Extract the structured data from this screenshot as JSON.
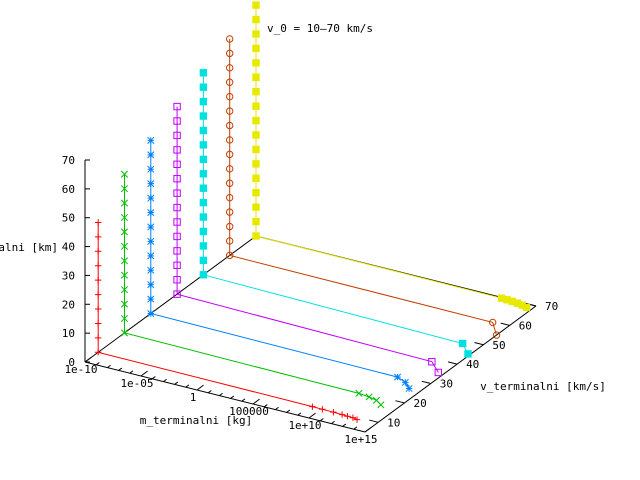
{
  "chart_data": {
    "type": "scatter",
    "title": "v_0 = 10–70 km/s",
    "xlabel": "m_terminalni [kg]",
    "ylabel": "v_terminalni [km/s]",
    "zlabel": "h_terminalni [km]",
    "x_ticks": [
      "1e-10",
      "1e-05",
      "1",
      "100000",
      "1e+10",
      "1e+15"
    ],
    "y_ticks": [
      "10",
      "20",
      "30",
      "40",
      "50",
      "60",
      "70"
    ],
    "z_ticks": [
      "0",
      "10",
      "20",
      "30",
      "40",
      "50",
      "60",
      "70"
    ],
    "xlim_log10": [
      -10,
      15
    ],
    "ylim": [
      5,
      70
    ],
    "zlim": [
      0,
      70
    ],
    "grid": false,
    "legend": "none",
    "series": [
      {
        "color": "#ff0000",
        "marker": "plus",
        "v0": 10,
        "points": [
          [
            13.35,
            9.0,
            0.0
          ],
          [
            12.9,
            9.35,
            0.0
          ],
          [
            12.4,
            9.4,
            0.0
          ],
          [
            11.9,
            9.5,
            0.0
          ],
          [
            11.1,
            9.6,
            0.0
          ],
          [
            10.1,
            9.65,
            0.0
          ],
          [
            9.2,
            9.7,
            0.0
          ],
          [
            -10,
            10,
            0
          ],
          [
            -10,
            10,
            5
          ],
          [
            -10,
            10,
            10
          ],
          [
            -10,
            10,
            15
          ],
          [
            -10,
            10,
            20
          ],
          [
            -10,
            10,
            25
          ],
          [
            -10,
            10,
            30
          ],
          [
            -10,
            10,
            35
          ],
          [
            -10,
            10,
            40
          ],
          [
            -10,
            10,
            45
          ]
        ]
      },
      {
        "color": "#00c000",
        "marker": "cross",
        "v0": 20,
        "points": [
          [
            13.6,
            17.0,
            0.0
          ],
          [
            12.9,
            18.3,
            0.0
          ],
          [
            12.1,
            18.9,
            0.0
          ],
          [
            11.1,
            19.3,
            0.0
          ],
          [
            -10,
            20,
            0
          ],
          [
            -10,
            20,
            5
          ],
          [
            -10,
            20,
            10
          ],
          [
            -10,
            20,
            15
          ],
          [
            -10,
            20,
            20
          ],
          [
            -10,
            20,
            25
          ],
          [
            -10,
            20,
            30
          ],
          [
            -10,
            20,
            35
          ],
          [
            -10,
            20,
            40
          ],
          [
            -10,
            20,
            45
          ],
          [
            -10,
            20,
            50
          ],
          [
            -10,
            20,
            55
          ]
        ]
      },
      {
        "color": "#0080ff",
        "marker": "star",
        "v0": 30,
        "points": [
          [
            14.0,
            26.0,
            0.0
          ],
          [
            13.2,
            28.0,
            0.0
          ],
          [
            12.2,
            29.3,
            0.0
          ],
          [
            -10,
            30,
            0
          ],
          [
            -10,
            30,
            5
          ],
          [
            -10,
            30,
            10
          ],
          [
            -10,
            30,
            15
          ],
          [
            -10,
            30,
            20
          ],
          [
            -10,
            30,
            25
          ],
          [
            -10,
            30,
            30
          ],
          [
            -10,
            30,
            35
          ],
          [
            -10,
            30,
            40
          ],
          [
            -10,
            30,
            45
          ],
          [
            -10,
            30,
            50
          ],
          [
            -10,
            30,
            55
          ],
          [
            -10,
            30,
            60
          ]
        ]
      },
      {
        "color": "#c000ff",
        "marker": "square-open",
        "v0": 40,
        "points": [
          [
            14.5,
            35.0,
            0.0
          ],
          [
            13.1,
            38.5,
            0.0
          ],
          [
            -10,
            40,
            0
          ],
          [
            -10,
            40,
            5
          ],
          [
            -10,
            40,
            10
          ],
          [
            -10,
            40,
            15
          ],
          [
            -10,
            40,
            20
          ],
          [
            -10,
            40,
            25
          ],
          [
            -10,
            40,
            30
          ],
          [
            -10,
            40,
            35
          ],
          [
            -10,
            40,
            40
          ],
          [
            -10,
            40,
            45
          ],
          [
            -10,
            40,
            50
          ],
          [
            -10,
            40,
            55
          ],
          [
            -10,
            40,
            60
          ],
          [
            -10,
            40,
            65
          ]
        ]
      },
      {
        "color": "#00e0e0",
        "marker": "square-filled",
        "v0": 50,
        "points": [
          [
            14.8,
            45.0,
            0.0
          ],
          [
            13.5,
            48.5,
            0.0
          ],
          [
            -10,
            50,
            0
          ],
          [
            -10,
            50,
            5
          ],
          [
            -10,
            50,
            10
          ],
          [
            -10,
            50,
            15
          ],
          [
            -10,
            50,
            20
          ],
          [
            -10,
            50,
            25
          ],
          [
            -10,
            50,
            30
          ],
          [
            -10,
            50,
            35
          ],
          [
            -10,
            50,
            40
          ],
          [
            -10,
            50,
            45
          ],
          [
            -10,
            50,
            50
          ],
          [
            -10,
            50,
            55
          ],
          [
            -10,
            50,
            60
          ],
          [
            -10,
            50,
            65
          ],
          [
            -10,
            50,
            70
          ]
        ]
      },
      {
        "color": "#c04000",
        "marker": "circle-open",
        "v0": 60,
        "points": [
          [
            15.0,
            55.0,
            0.0
          ],
          [
            13.6,
            59.5,
            0.0
          ],
          [
            -10,
            60,
            0
          ],
          [
            -10,
            60,
            5
          ],
          [
            -10,
            60,
            10
          ],
          [
            -10,
            60,
            15
          ],
          [
            -10,
            60,
            20
          ],
          [
            -10,
            60,
            25
          ],
          [
            -10,
            60,
            30
          ],
          [
            -10,
            60,
            35
          ],
          [
            -10,
            60,
            40
          ],
          [
            -10,
            60,
            45
          ],
          [
            -10,
            60,
            50
          ],
          [
            -10,
            60,
            55
          ],
          [
            -10,
            60,
            60
          ],
          [
            -10,
            60,
            65
          ],
          [
            -10,
            60,
            70
          ],
          [
            -10,
            60,
            75
          ]
        ]
      },
      {
        "color": "#e8e800",
        "marker": "square-filled",
        "v0": 70,
        "points": [
          [
            14.5,
            68.5,
            0.0
          ],
          [
            14.0,
            69.0,
            0.0
          ],
          [
            13.5,
            69.3,
            0.0
          ],
          [
            13.0,
            69.5,
            0.0
          ],
          [
            12.5,
            69.6,
            0.0
          ],
          [
            12.0,
            69.7,
            0.0
          ],
          [
            -10,
            70,
            0
          ],
          [
            -10,
            70,
            5
          ],
          [
            -10,
            70,
            10
          ],
          [
            -10,
            70,
            15
          ],
          [
            -10,
            70,
            20
          ],
          [
            -10,
            70,
            25
          ],
          [
            -10,
            70,
            30
          ],
          [
            -10,
            70,
            35
          ],
          [
            -10,
            70,
            40
          ],
          [
            -10,
            70,
            45
          ],
          [
            -10,
            70,
            50
          ],
          [
            -10,
            70,
            55
          ],
          [
            -10,
            70,
            60
          ],
          [
            -10,
            70,
            65
          ],
          [
            -10,
            70,
            70
          ],
          [
            -10,
            70,
            75
          ],
          [
            -10,
            70,
            80
          ]
        ]
      }
    ]
  }
}
